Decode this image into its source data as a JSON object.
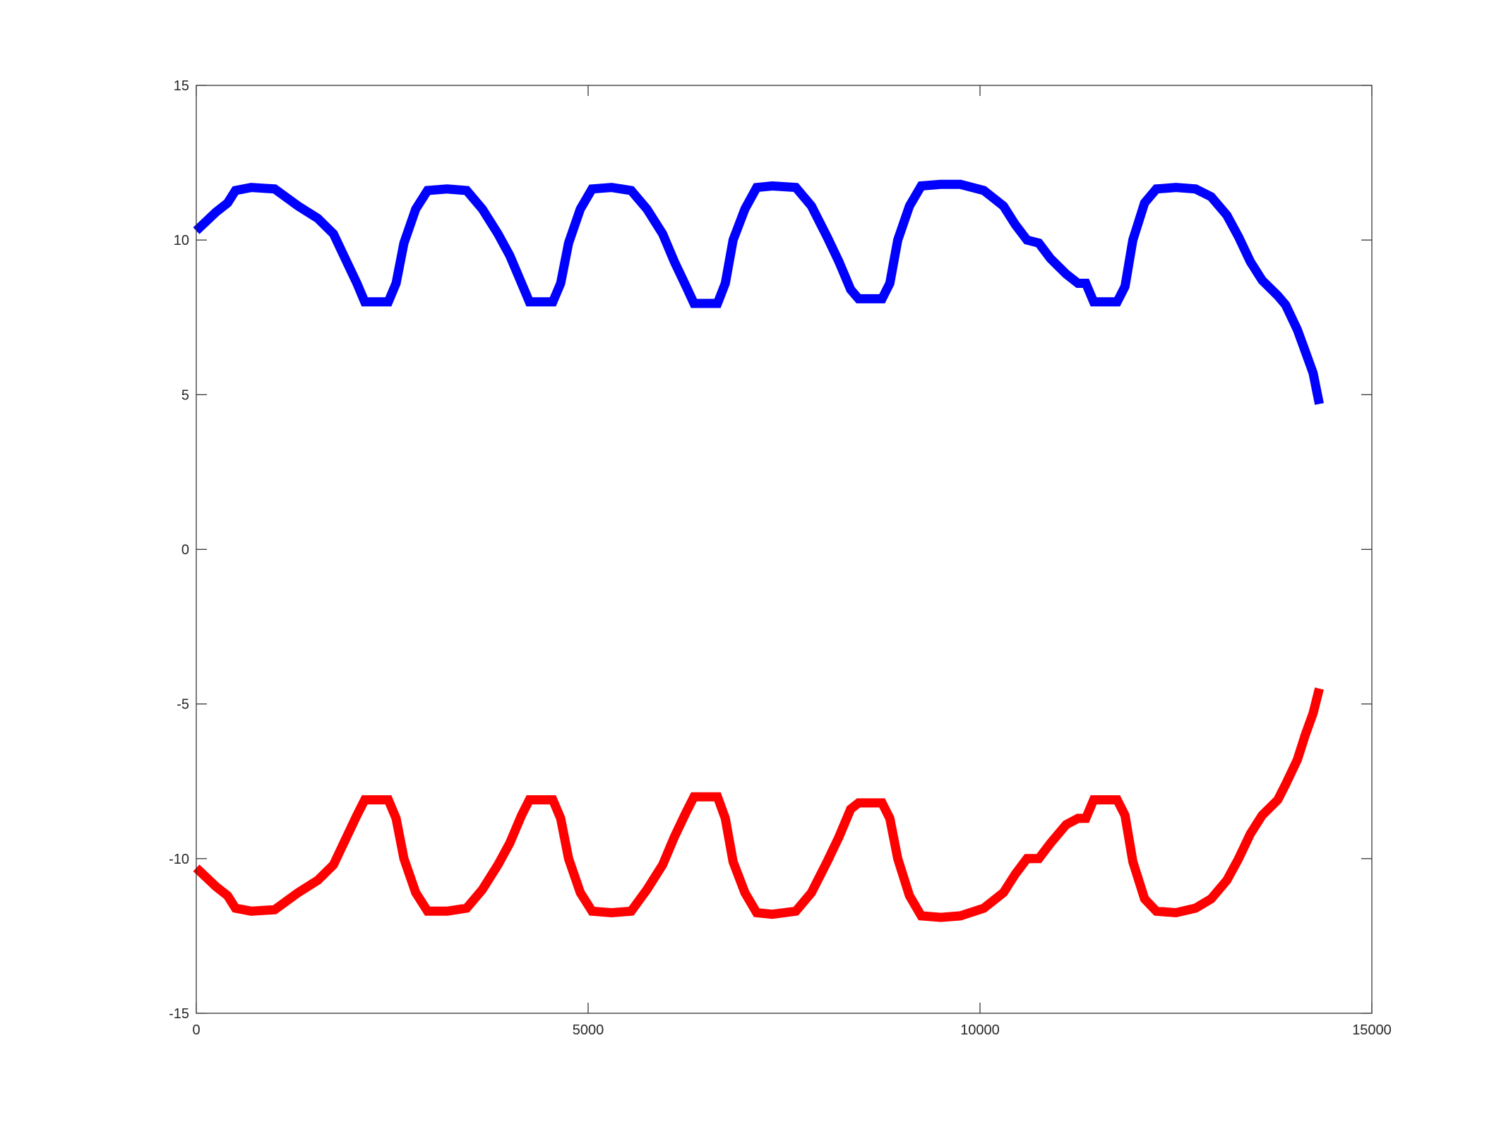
{
  "chart_data": {
    "type": "line",
    "xlim": [
      0,
      15000
    ],
    "ylim": [
      -15,
      15
    ],
    "xticks": [
      0,
      5000,
      10000,
      15000
    ],
    "yticks": [
      15,
      10,
      5,
      0,
      -5,
      -10,
      -15
    ],
    "xtick_labels": [
      "0",
      "5000",
      "10000",
      "15000"
    ],
    "ytick_labels": [
      "15",
      "10",
      "5",
      "0",
      "-5",
      "-10",
      "-15"
    ],
    "grid": false,
    "box": true,
    "series": [
      {
        "color": "#0000ff",
        "x": [
          0,
          250,
          400,
          500,
          700,
          1000,
          1300,
          1550,
          1750,
          1900,
          2050,
          2150,
          2450,
          2550,
          2650,
          2800,
          2950,
          3200,
          3450,
          3650,
          3850,
          4000,
          4150,
          4250,
          4550,
          4650,
          4750,
          4900,
          5050,
          5300,
          5550,
          5750,
          5950,
          6100,
          6250,
          6350,
          6650,
          6750,
          6850,
          7000,
          7150,
          7350,
          7650,
          7850,
          8050,
          8200,
          8350,
          8450,
          8750,
          8850,
          8950,
          9100,
          9250,
          9500,
          9750,
          10050,
          10300,
          10450,
          10600,
          10750,
          10900,
          11100,
          11250,
          11350,
          11450,
          11750,
          11850,
          11950,
          12100,
          12250,
          12500,
          12750,
          12950,
          13150,
          13300,
          13450,
          13600,
          13800,
          13900,
          14050,
          14150,
          14250,
          14330
        ],
        "y": [
          10.3,
          10.9,
          11.2,
          11.6,
          11.7,
          11.65,
          11.1,
          10.7,
          10.2,
          9.4,
          8.6,
          8.0,
          8.0,
          8.6,
          9.9,
          11.0,
          11.6,
          11.65,
          11.6,
          11.0,
          10.2,
          9.5,
          8.6,
          8.0,
          8.0,
          8.6,
          9.9,
          11.0,
          11.65,
          11.7,
          11.6,
          11.0,
          10.2,
          9.3,
          8.5,
          7.95,
          7.95,
          8.6,
          10.0,
          11.0,
          11.7,
          11.75,
          11.7,
          11.1,
          10.1,
          9.3,
          8.4,
          8.1,
          8.1,
          8.6,
          10.0,
          11.1,
          11.75,
          11.8,
          11.8,
          11.6,
          11.1,
          10.5,
          10.0,
          9.9,
          9.4,
          8.9,
          8.6,
          8.6,
          8.0,
          8.0,
          8.5,
          10.0,
          11.2,
          11.65,
          11.7,
          11.65,
          11.4,
          10.8,
          10.1,
          9.3,
          8.7,
          8.2,
          7.9,
          7.1,
          6.4,
          5.7,
          4.7
        ]
      },
      {
        "color": "#ff0000",
        "x": [
          0,
          250,
          400,
          500,
          700,
          1000,
          1300,
          1550,
          1750,
          1900,
          2050,
          2150,
          2450,
          2550,
          2650,
          2800,
          2950,
          3200,
          3450,
          3650,
          3850,
          4000,
          4150,
          4250,
          4550,
          4650,
          4750,
          4900,
          5050,
          5300,
          5550,
          5750,
          5950,
          6100,
          6250,
          6350,
          6650,
          6750,
          6850,
          7000,
          7150,
          7350,
          7650,
          7850,
          8050,
          8200,
          8350,
          8450,
          8750,
          8850,
          8950,
          9100,
          9250,
          9500,
          9750,
          10050,
          10300,
          10450,
          10600,
          10750,
          10900,
          11100,
          11250,
          11350,
          11450,
          11750,
          11850,
          11950,
          12100,
          12250,
          12500,
          12750,
          12950,
          13150,
          13300,
          13450,
          13600,
          13800,
          13900,
          14050,
          14150,
          14250,
          14330
        ],
        "y": [
          -10.3,
          -10.9,
          -11.2,
          -11.6,
          -11.7,
          -11.65,
          -11.1,
          -10.7,
          -10.2,
          -9.4,
          -8.6,
          -8.1,
          -8.1,
          -8.7,
          -10.0,
          -11.1,
          -11.7,
          -11.7,
          -11.6,
          -11.0,
          -10.2,
          -9.5,
          -8.6,
          -8.1,
          -8.1,
          -8.7,
          -10.0,
          -11.1,
          -11.7,
          -11.75,
          -11.7,
          -11.0,
          -10.2,
          -9.3,
          -8.5,
          -8.0,
          -8.0,
          -8.7,
          -10.1,
          -11.1,
          -11.75,
          -11.8,
          -11.7,
          -11.1,
          -10.1,
          -9.3,
          -8.4,
          -8.2,
          -8.2,
          -8.7,
          -10.0,
          -11.2,
          -11.85,
          -11.9,
          -11.85,
          -11.6,
          -11.1,
          -10.5,
          -10.0,
          -10.0,
          -9.5,
          -8.9,
          -8.7,
          -8.7,
          -8.1,
          -8.1,
          -8.6,
          -10.1,
          -11.3,
          -11.7,
          -11.75,
          -11.6,
          -11.3,
          -10.7,
          -10.0,
          -9.2,
          -8.6,
          -8.1,
          -7.6,
          -6.8,
          -6.0,
          -5.3,
          -4.5
        ]
      }
    ]
  }
}
